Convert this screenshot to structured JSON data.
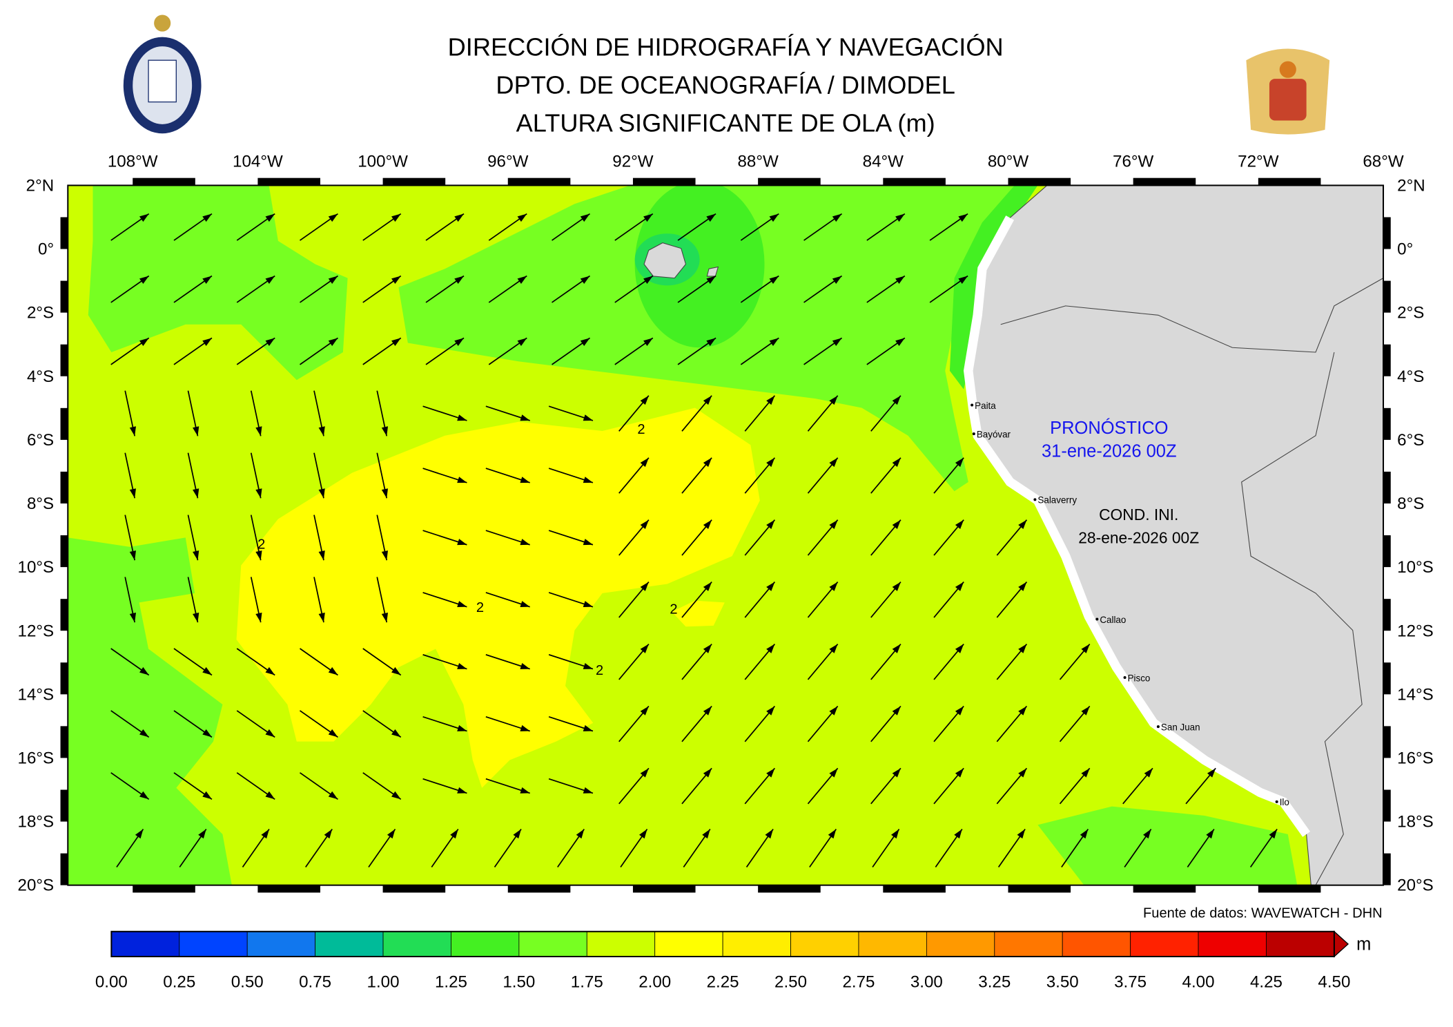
{
  "header": {
    "title_lines": [
      "DIRECCIÓN DE HIDROGRAFÍA Y NAVEGACIÓN",
      "DPTO. DE OCEANOGRAFÍA / DIMODEL",
      "ALTURA SIGNIFICANTE DE OLA (m)"
    ]
  },
  "map": {
    "lon_labels": [
      "108°W",
      "104°W",
      "100°W",
      "96°W",
      "92°W",
      "88°W",
      "84°W",
      "80°W",
      "76°W",
      "72°W",
      "68°W"
    ],
    "lat_labels": [
      "2°N",
      "0°",
      "2°S",
      "4°S",
      "6°S",
      "8°S",
      "10°S",
      "12°S",
      "14°S",
      "16°S",
      "18°S",
      "20°S"
    ],
    "contour_labels": [
      "2",
      "2",
      "2",
      "2",
      "2"
    ],
    "cities": [
      "Paita",
      "Bayóvar",
      "Salaverry",
      "Callao",
      "Pisco",
      "San Juan",
      "Ilo"
    ],
    "forecast": {
      "label": "PRONÓSTICO",
      "date": "31-ene-2026 00Z"
    },
    "init": {
      "label": "COND. INI.",
      "date": "28-ene-2026 00Z"
    },
    "source": "Fuente de datos: WAVEWATCH - DHN"
  },
  "colorbar": {
    "ticks": [
      "0.00",
      "0.25",
      "0.50",
      "0.75",
      "1.00",
      "1.25",
      "1.50",
      "1.75",
      "2.00",
      "2.25",
      "2.50",
      "2.75",
      "3.00",
      "3.25",
      "3.50",
      "3.75",
      "4.00",
      "4.25",
      "4.50"
    ],
    "colors": [
      "#0022dd",
      "#0044ff",
      "#1177ee",
      "#00bb99",
      "#22dd55",
      "#44f022",
      "#77ff22",
      "#ccff00",
      "#ffff00",
      "#ffee00",
      "#ffd000",
      "#ffb800",
      "#ff9900",
      "#ff7700",
      "#ff5500",
      "#ff2200",
      "#ee0000",
      "#bb0000"
    ],
    "unit": "m"
  }
}
